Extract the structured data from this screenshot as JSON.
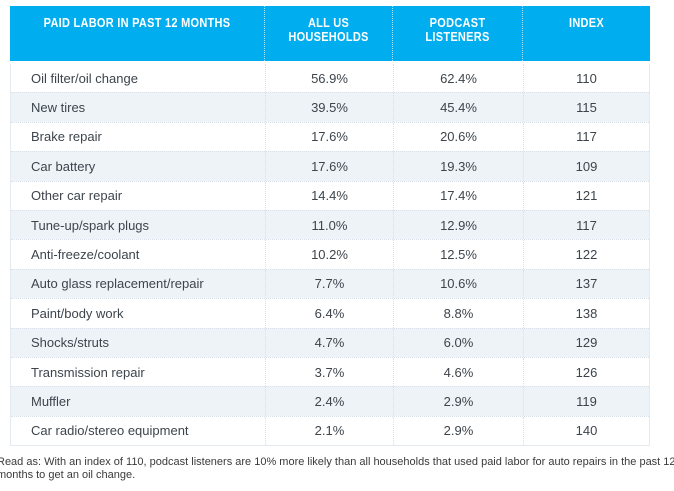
{
  "colors": {
    "header_bg": "#00AEEF",
    "row_alt_bg": "#EEF3F8",
    "body_text": "#3D444B"
  },
  "table": {
    "headers": [
      "PAID LABOR IN PAST 12 MONTHS",
      "ALL US HOUSEHOLDS",
      "PODCAST LISTENERS",
      "INDEX"
    ],
    "rows": [
      {
        "label": "Oil filter/oil change",
        "all_us": "56.9%",
        "podcast": "62.4%",
        "index": "110"
      },
      {
        "label": "New tires",
        "all_us": "39.5%",
        "podcast": "45.4%",
        "index": "115"
      },
      {
        "label": "Brake repair",
        "all_us": "17.6%",
        "podcast": "20.6%",
        "index": "117"
      },
      {
        "label": "Car battery",
        "all_us": "17.6%",
        "podcast": "19.3%",
        "index": "109"
      },
      {
        "label": "Other car repair",
        "all_us": "14.4%",
        "podcast": "17.4%",
        "index": "121"
      },
      {
        "label": "Tune-up/spark plugs",
        "all_us": "11.0%",
        "podcast": "12.9%",
        "index": "117"
      },
      {
        "label": "Anti-freeze/coolant",
        "all_us": "10.2%",
        "podcast": "12.5%",
        "index": "122"
      },
      {
        "label": "Auto glass replacement/repair",
        "all_us": "7.7%",
        "podcast": "10.6%",
        "index": "137"
      },
      {
        "label": "Paint/body work",
        "all_us": "6.4%",
        "podcast": "8.8%",
        "index": "138"
      },
      {
        "label": "Shocks/struts",
        "all_us": "4.7%",
        "podcast": "6.0%",
        "index": "129"
      },
      {
        "label": "Transmission repair",
        "all_us": "3.7%",
        "podcast": "4.6%",
        "index": "126"
      },
      {
        "label": "Muffler",
        "all_us": "2.4%",
        "podcast": "2.9%",
        "index": "119"
      },
      {
        "label": "Car radio/stereo equipment",
        "all_us": "2.1%",
        "podcast": "2.9%",
        "index": "140"
      }
    ]
  },
  "footnote": {
    "line1": "Read as: With an index of 110, podcast listeners are 10% more likely than all households that used paid labor for auto repairs in the past 12",
    "line2": "months to get an oil change."
  },
  "chart_data": {
    "type": "table",
    "title": "Paid Labor in Past 12 Months",
    "columns": [
      "Paid labor in past 12 months",
      "All US Households",
      "Podcast Listeners",
      "Index"
    ],
    "categories": [
      "Oil filter/oil change",
      "New tires",
      "Brake repair",
      "Car battery",
      "Other car repair",
      "Tune-up/spark plugs",
      "Anti-freeze/coolant",
      "Auto glass replacement/repair",
      "Paint/body work",
      "Shocks/struts",
      "Transmission repair",
      "Muffler",
      "Car radio/stereo equipment"
    ],
    "series": [
      {
        "name": "All US Households",
        "unit": "%",
        "values": [
          56.9,
          39.5,
          17.6,
          17.6,
          14.4,
          11.0,
          10.2,
          7.7,
          6.4,
          4.7,
          3.7,
          2.4,
          2.1
        ]
      },
      {
        "name": "Podcast Listeners",
        "unit": "%",
        "values": [
          62.4,
          45.4,
          20.6,
          19.3,
          17.4,
          12.9,
          12.5,
          10.6,
          8.8,
          6.0,
          4.6,
          2.9,
          2.9
        ]
      },
      {
        "name": "Index",
        "unit": "",
        "values": [
          110,
          115,
          117,
          109,
          121,
          117,
          122,
          137,
          138,
          129,
          126,
          119,
          140
        ]
      }
    ],
    "annotations": [
      "Read as: With an index of 110, podcast listeners are 10% more likely than all households that used paid labor for auto repairs in the past 12 months to get an oil change."
    ],
    "layout": {
      "header_bg": "#00AEEF",
      "zebra_striping": true,
      "grid": "dotted"
    }
  }
}
